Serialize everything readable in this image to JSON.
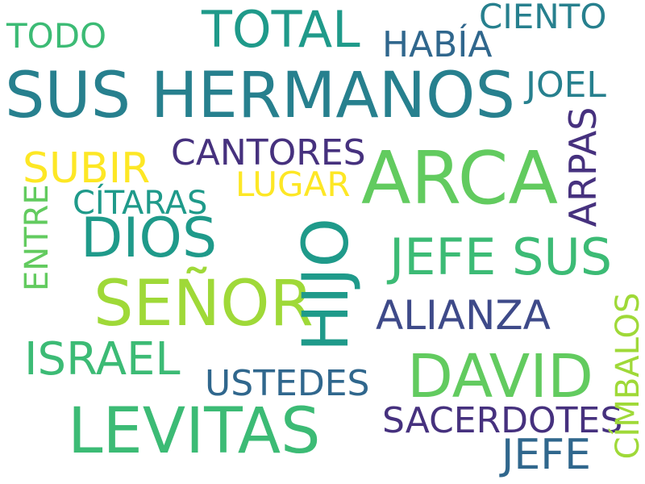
{
  "colors": {
    "background": "#ffffff",
    "dark_purple": "#46317e",
    "indigo": "#3e4a89",
    "blue": "#30678d",
    "teal_dark": "#27808e",
    "teal": "#1f9a8a",
    "green": "#3cbb75",
    "light_green": "#62cb5f",
    "lime": "#9fd938",
    "yellow": "#fde725"
  },
  "words": {
    "sus_hermanos": "SUS HERMANOS",
    "arca": "ARCA",
    "levitas": "LEVITAS",
    "senor": "SEÑOR",
    "david": "DAVID",
    "hijo": "HIJO",
    "dios": "DIOS",
    "jefe_sus": "JEFE SUS",
    "total": "TOTAL",
    "israel": "ISRAEL",
    "alianza": "ALIANZA",
    "jefe": "JEFE",
    "subir": "SUBIR",
    "sacerdotes": "SACERDOTES",
    "cantores": "CANTORES",
    "ustedes": "USTEDES",
    "habia": "HABÍA",
    "joel": "JOEL",
    "ciento": "CIENTO",
    "lugar": "LUGAR",
    "citaras": "CÍTARAS",
    "todo": "TODO",
    "arpas": "ARPAS",
    "entre": "ENTRE",
    "cimbalos": "CÍMBALOS"
  }
}
